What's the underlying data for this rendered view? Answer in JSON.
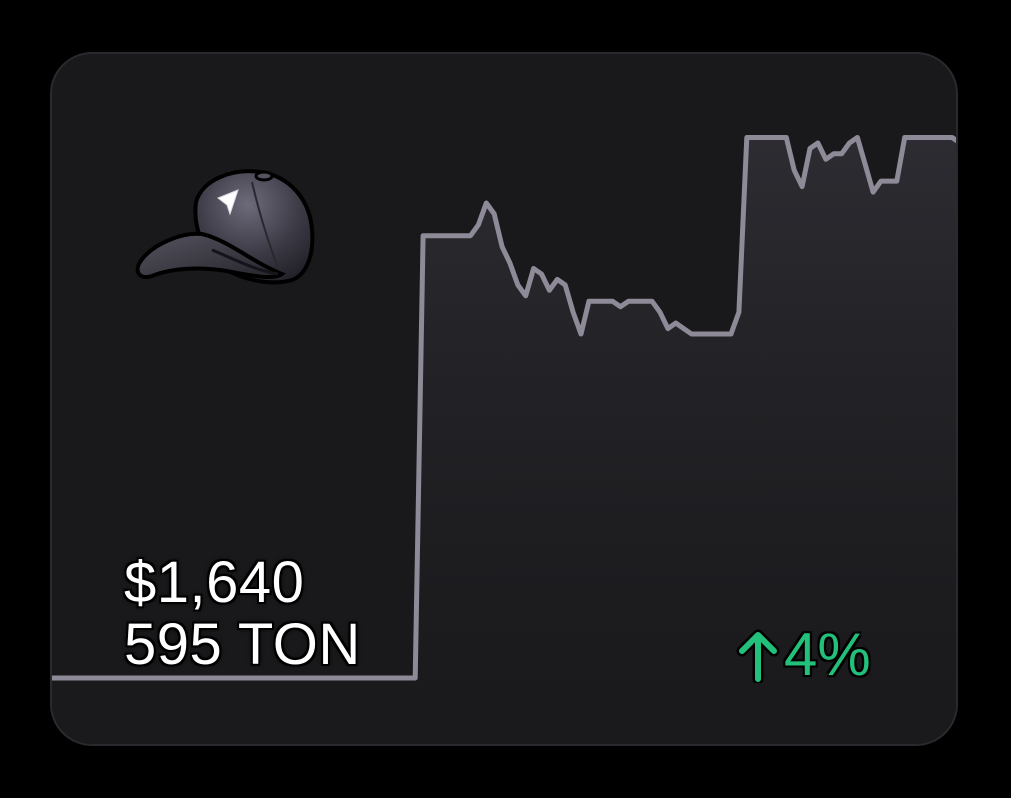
{
  "card": {
    "price_usd": "$1,640",
    "price_ton": "595 TON",
    "change": "4%",
    "change_direction": "up",
    "change_color": "#22c07a",
    "line_color": "#8e8a97",
    "background_color": "#19191b",
    "item_icon": "cap-icon"
  },
  "chart_data": {
    "type": "line",
    "title": "",
    "xlabel": "",
    "ylabel": "",
    "grid": false,
    "legend": "none",
    "ylim": [
      0,
      100
    ],
    "series": [
      {
        "values": [
          0,
          0,
          0,
          0,
          0,
          0,
          0,
          0,
          0,
          0,
          0,
          0,
          0,
          0,
          0,
          0,
          0,
          0,
          0,
          0,
          0,
          0,
          0,
          0,
          0,
          0,
          0,
          0,
          0,
          0,
          0,
          0,
          0,
          0,
          0,
          0,
          0,
          0,
          0,
          0,
          0,
          0,
          0,
          0,
          0,
          0,
          0,
          81,
          81,
          81,
          81,
          81,
          81,
          81,
          83,
          87,
          85,
          79,
          76,
          72,
          70,
          75,
          74,
          71,
          73,
          72,
          67,
          63,
          69,
          69,
          69,
          69,
          68,
          69,
          69,
          69,
          69,
          67,
          64,
          65,
          64,
          63,
          63,
          63,
          63,
          63,
          63,
          67,
          99,
          99,
          99,
          99,
          99,
          99,
          93,
          90,
          97,
          98,
          95,
          96,
          96,
          98,
          99,
          94,
          89,
          91,
          91,
          91,
          99,
          99,
          99,
          99,
          99,
          99,
          99,
          98
        ]
      }
    ]
  }
}
